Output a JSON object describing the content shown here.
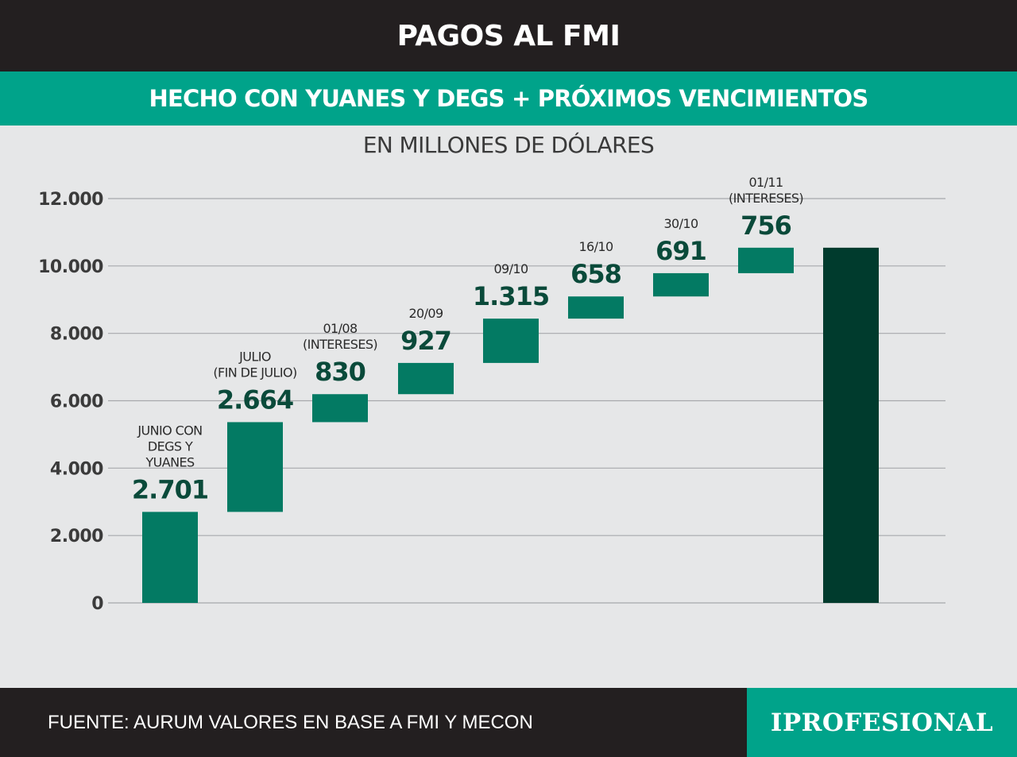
{
  "header": {
    "title": "PAGOS AL FMI",
    "subtitle": "HECHO CON YUANES Y DEGS + PRÓXIMOS VENCIMIENTOS"
  },
  "chart_data": {
    "type": "bar",
    "subtype": "waterfall",
    "units_label": "EN MILLONES DE DÓLARES",
    "title": "",
    "xlabel": "",
    "ylabel": "",
    "ylim": [
      0,
      12000
    ],
    "yticks": [
      0,
      2000,
      4000,
      6000,
      8000,
      10000,
      12000
    ],
    "ytick_labels": [
      "0",
      "2.000",
      "4.000",
      "6.000",
      "8.000",
      "10.000",
      "12.000"
    ],
    "grid": true,
    "bars": [
      {
        "label_lines": [
          "JUNIO CON",
          "DEGS Y",
          "YUANES"
        ],
        "value": 2701,
        "value_label": "2.701"
      },
      {
        "label_lines": [
          "JULIO",
          "(FIN DE JULIO)"
        ],
        "value": 2664,
        "value_label": "2.664"
      },
      {
        "label_lines": [
          "01/08",
          "(INTERESES)"
        ],
        "value": 830,
        "value_label": "830"
      },
      {
        "label_lines": [
          "20/09"
        ],
        "value": 927,
        "value_label": "927"
      },
      {
        "label_lines": [
          "09/10"
        ],
        "value": 1315,
        "value_label": "1.315"
      },
      {
        "label_lines": [
          "16/10"
        ],
        "value": 658,
        "value_label": "658"
      },
      {
        "label_lines": [
          "30/10"
        ],
        "value": 691,
        "value_label": "691"
      },
      {
        "label_lines": [
          "01/11",
          "(INTERESES)"
        ],
        "value": 756,
        "value_label": "756"
      }
    ],
    "total": {
      "value": 10542
    },
    "colors": {
      "bar": "#037a63",
      "total": "#003b2d",
      "value_text": "#0a4a3a",
      "grid": "#a7a9ac"
    }
  },
  "footer": {
    "source": "FUENTE: AURUM VALORES EN BASE A FMI Y MECON",
    "logo_text": "IPROFESIONAL"
  }
}
